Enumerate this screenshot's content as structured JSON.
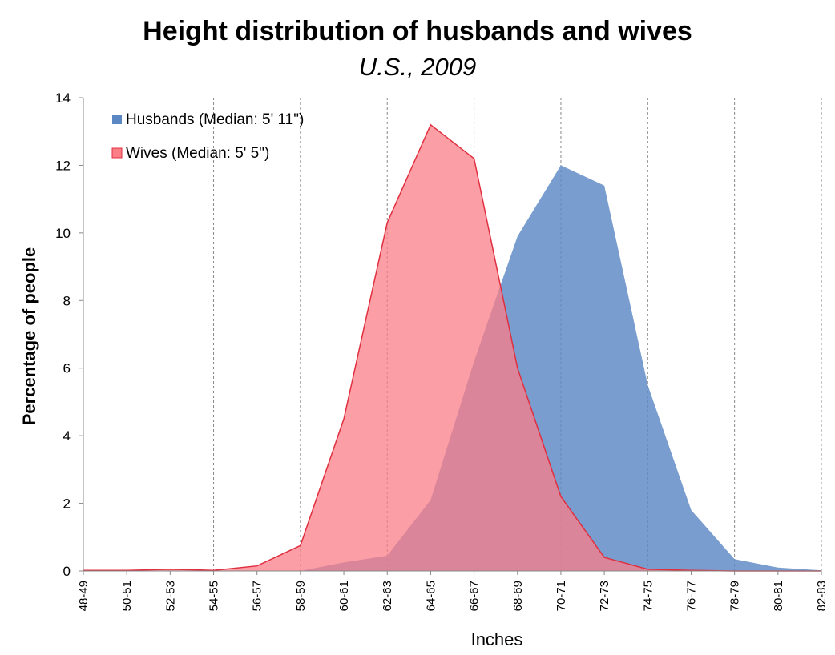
{
  "chart_data": {
    "type": "area",
    "title": "Height distribution of husbands and wives",
    "subtitle": "U.S., 2009",
    "xlabel": "Inches",
    "ylabel": "Percentage of people",
    "ylim": [
      0,
      14
    ],
    "yticks": [
      0,
      2,
      4,
      6,
      8,
      10,
      12,
      14
    ],
    "grid": "vertical dashed lines at every other category",
    "legend_position": "top-left",
    "categories": [
      "48-49",
      "50-51",
      "52-53",
      "54-55",
      "56-57",
      "58-59",
      "60-61",
      "62-63",
      "64-65",
      "66-67",
      "68-69",
      "70-71",
      "72-73",
      "74-75",
      "76-77",
      "78-79",
      "80-81",
      "82-83"
    ],
    "series": [
      {
        "name": "Husbands (Median: 5' 11\")",
        "color": "#5b87c3",
        "values": [
          0,
          0,
          0,
          0,
          0,
          0,
          0.25,
          0.45,
          2.1,
          6.2,
          9.9,
          12.0,
          11.4,
          5.5,
          1.8,
          0.35,
          0.1,
          0.02
        ]
      },
      {
        "name": "Wives (Median: 5' 5\")",
        "color": "#fb7e87",
        "values": [
          0.02,
          0.02,
          0.05,
          0.02,
          0.15,
          0.75,
          4.5,
          10.3,
          13.2,
          12.2,
          6.0,
          2.2,
          0.4,
          0.05,
          0.02,
          0,
          0,
          0
        ]
      }
    ]
  }
}
